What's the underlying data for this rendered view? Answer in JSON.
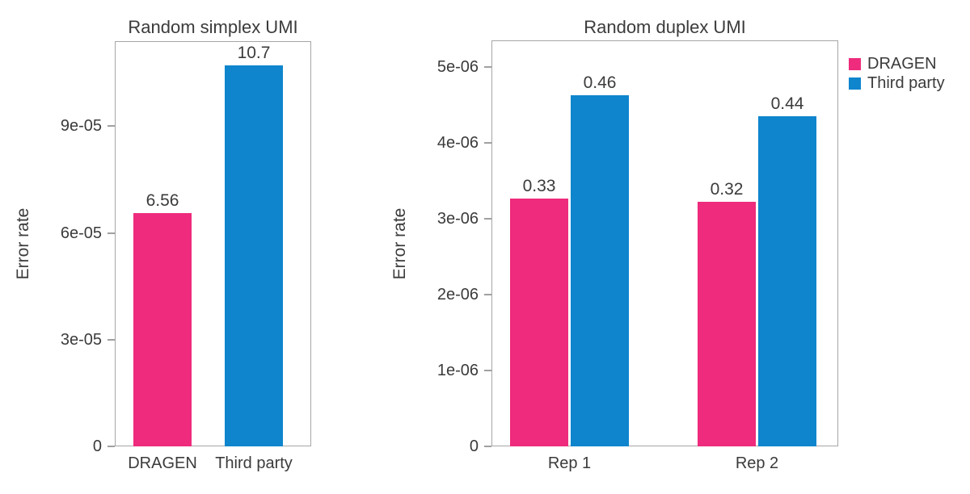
{
  "figure": {
    "background": "#ffffff",
    "text_color": "#3b3b3b",
    "axis_color": "#a6a6a6"
  },
  "colors": {
    "dragen_pink": "#ee2b7c",
    "third_party_blue": "#0e85cd"
  },
  "legend": {
    "position": "right-top",
    "items": [
      {
        "label": "DRAGEN",
        "color": "#ee2b7c"
      },
      {
        "label": "Third party",
        "color": "#0e85cd"
      }
    ]
  },
  "chart_data": [
    {
      "type": "bar",
      "title": "Random simplex UMI",
      "xlabel": "",
      "ylabel": "Error rate",
      "categories": [
        "DRAGEN",
        "Third party"
      ],
      "values": [
        6.56e-05,
        0.000107
      ],
      "value_labels": [
        "6.56",
        "10.7"
      ],
      "bar_colors": [
        "#ee2b7c",
        "#0e85cd"
      ],
      "ytick_values": [
        0,
        3e-05,
        6e-05,
        9e-05
      ],
      "ytick_labels": [
        "0",
        "3e-05",
        "6e-05",
        "9e-05"
      ],
      "ylim": [
        0,
        0.0001139
      ],
      "grid": false
    },
    {
      "type": "bar",
      "title": "Random duplex UMI",
      "xlabel": "",
      "ylabel": "Error rate",
      "categories": [
        "Rep 1",
        "Rep 2"
      ],
      "series": [
        {
          "name": "DRAGEN",
          "color": "#ee2b7c",
          "values": [
            3.27e-06,
            3.22e-06
          ],
          "value_labels": [
            "0.33",
            "0.32"
          ]
        },
        {
          "name": "Third party",
          "color": "#0e85cd",
          "values": [
            4.63e-06,
            4.35e-06
          ],
          "value_labels": [
            "0.46",
            "0.44"
          ]
        }
      ],
      "ytick_values": [
        0,
        1e-06,
        2e-06,
        3e-06,
        4e-06,
        5e-06
      ],
      "ytick_labels": [
        "0",
        "1e-06",
        "2e-06",
        "3e-06",
        "4e-06",
        "5e-06"
      ],
      "ylim": [
        0,
        5.351e-06
      ],
      "grid": false
    }
  ]
}
